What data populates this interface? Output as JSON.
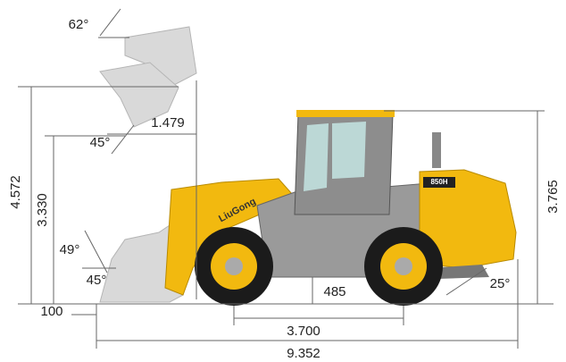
{
  "dimensions": [
    {
      "label": "62°"
    },
    {
      "label": "45°"
    },
    {
      "label": "1.479"
    },
    {
      "label": "4.572"
    },
    {
      "label": "3.330"
    },
    {
      "label": "49°"
    },
    {
      "label": "45°"
    },
    {
      "label": "100"
    },
    {
      "label": "485"
    },
    {
      "label": "3.700"
    },
    {
      "label": "9.352"
    },
    {
      "label": "3.765"
    },
    {
      "label": "25°"
    }
  ],
  "branding": {
    "logo": "LiuGong",
    "model": "850H"
  }
}
